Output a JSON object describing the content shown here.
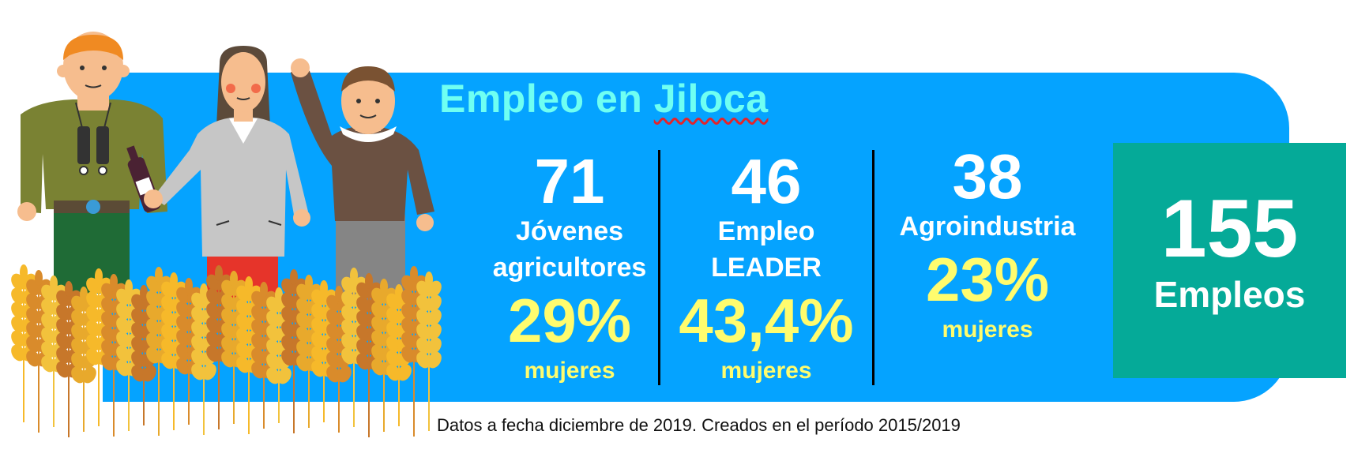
{
  "title": {
    "prefix": "Empleo en",
    "place": "Jiloca"
  },
  "stats": [
    {
      "number": "71",
      "label_line1": "Jóvenes",
      "label_line2": "agricultores",
      "percent": "29%",
      "percent_label": "mujeres"
    },
    {
      "number": "46",
      "label_line1": "Empleo",
      "label_line2": "LEADER",
      "percent": "43,4%",
      "percent_label": "mujeres"
    },
    {
      "number": "38",
      "label_line1": "Agroindustria",
      "percent": "23%",
      "percent_label": "mujeres"
    }
  ],
  "total": {
    "number": "155",
    "label": "Empleos"
  },
  "footnote": "Datos a fecha diciembre de 2019. Creados en el período 2015/2019",
  "colors": {
    "banner": "#05a3ff",
    "title": "#6ffff2",
    "percent": "#fffc6e",
    "total_box": "#05aa98",
    "number": "#ffffff"
  },
  "illustration": {
    "figures": [
      "farmer-with-binoculars",
      "woman-with-wine-bottle",
      "man-waving"
    ],
    "foreground": "wheat-field"
  }
}
